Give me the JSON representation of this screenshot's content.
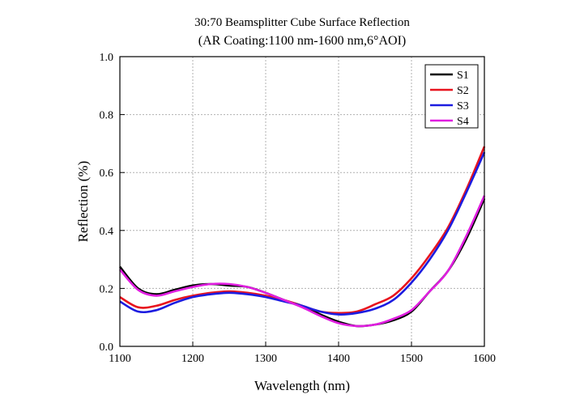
{
  "chart_data": {
    "type": "line",
    "title": "30:70 Beamsplitter Cube Surface Reflection",
    "subtitle": "(AR Coating:1100 nm-1600 nm,6°AOI)",
    "xlabel": "Wavelength (nm)",
    "ylabel": "Reflection (%)",
    "xlim": [
      1100,
      1600
    ],
    "ylim": [
      0.0,
      1.0
    ],
    "xticks": [
      "1100",
      "1200",
      "1300",
      "1400",
      "1500",
      "1600"
    ],
    "yticks": [
      "0.0",
      "0.2",
      "0.4",
      "0.6",
      "0.8",
      "1.0"
    ],
    "grid": true,
    "legend_position": "top-right",
    "x": [
      1100,
      1125,
      1150,
      1175,
      1200,
      1225,
      1250,
      1275,
      1300,
      1325,
      1350,
      1375,
      1400,
      1425,
      1450,
      1475,
      1500,
      1525,
      1550,
      1575,
      1600
    ],
    "series": [
      {
        "name": "S1",
        "color": "#000000",
        "values": [
          0.275,
          0.2,
          0.18,
          0.195,
          0.21,
          0.215,
          0.21,
          0.205,
          0.185,
          0.16,
          0.14,
          0.11,
          0.085,
          0.07,
          0.075,
          0.09,
          0.12,
          0.19,
          0.26,
          0.37,
          0.51
        ]
      },
      {
        "name": "S2",
        "color": "#e8141e",
        "values": [
          0.17,
          0.135,
          0.14,
          0.16,
          0.175,
          0.185,
          0.19,
          0.185,
          0.175,
          0.16,
          0.14,
          0.12,
          0.115,
          0.12,
          0.145,
          0.175,
          0.235,
          0.315,
          0.41,
          0.54,
          0.69
        ]
      },
      {
        "name": "S3",
        "color": "#1c1ce0",
        "values": [
          0.155,
          0.12,
          0.125,
          0.15,
          0.17,
          0.18,
          0.185,
          0.18,
          0.17,
          0.155,
          0.14,
          0.12,
          0.11,
          0.115,
          0.13,
          0.16,
          0.22,
          0.3,
          0.4,
          0.53,
          0.67
        ]
      },
      {
        "name": "S4",
        "color": "#e01ee0",
        "values": [
          0.265,
          0.195,
          0.175,
          0.19,
          0.205,
          0.215,
          0.215,
          0.205,
          0.185,
          0.16,
          0.135,
          0.105,
          0.08,
          0.07,
          0.075,
          0.095,
          0.125,
          0.19,
          0.26,
          0.38,
          0.52
        ]
      }
    ]
  }
}
